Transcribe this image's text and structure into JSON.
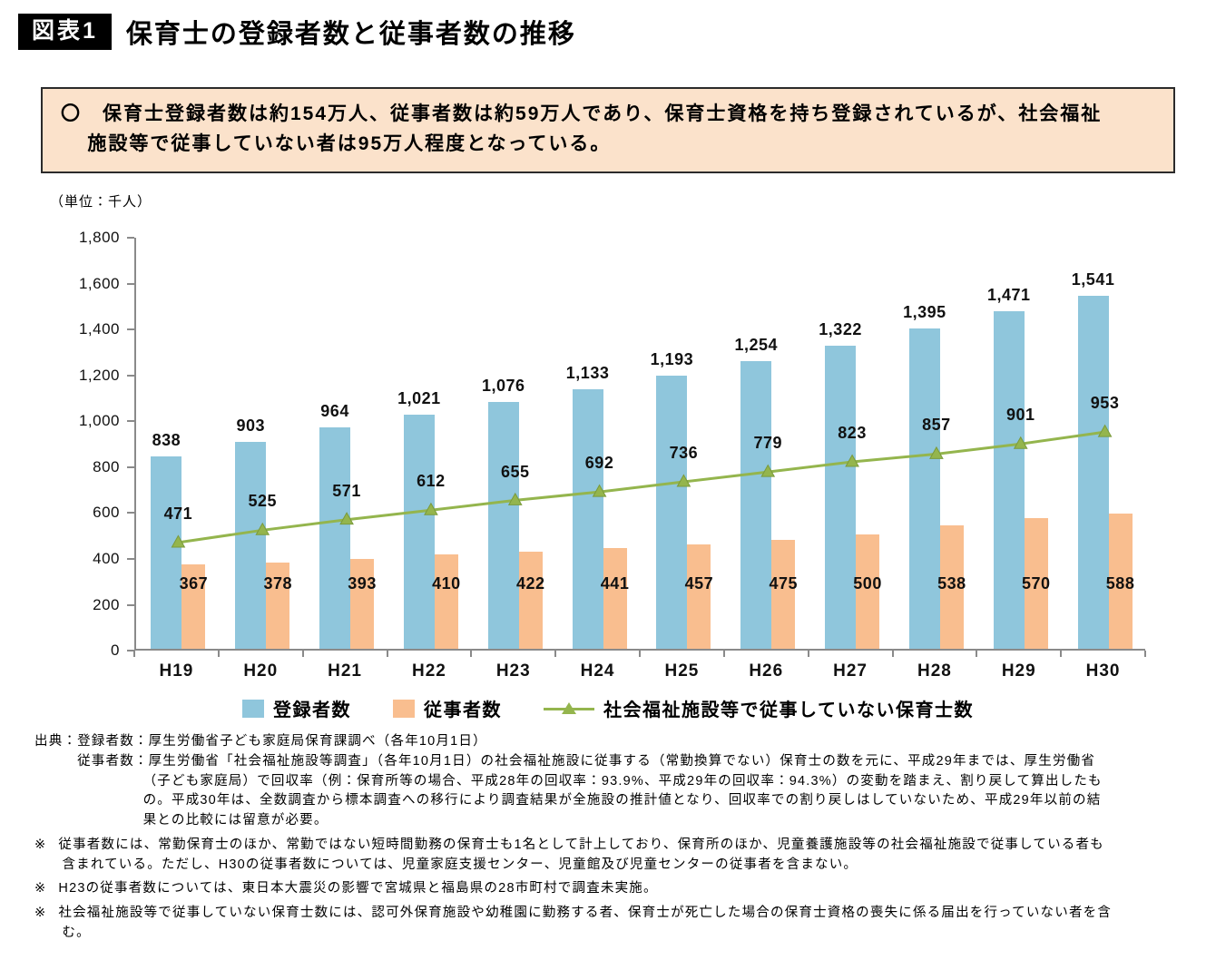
{
  "header": {
    "tag": "図表1",
    "title": "保育士の登録者数と従事者数の推移"
  },
  "callout": {
    "text": "〇　保育士登録者数は約154万人、従事者数は約59万人であり、保育士資格を持ち登録されているが、社会福祉施設等で従事していない者は95万人程度となっている。"
  },
  "chart_data": {
    "type": "bar",
    "subtype": "grouped-bar-with-line",
    "unit_label": "（単位：千人）",
    "categories": [
      "H19",
      "H20",
      "H21",
      "H22",
      "H23",
      "H24",
      "H25",
      "H26",
      "H27",
      "H28",
      "H29",
      "H30"
    ],
    "series": [
      {
        "name": "登録者数",
        "renderer": "bar",
        "color": "#8fc6dc",
        "values": [
          838,
          903,
          964,
          1021,
          1076,
          1133,
          1193,
          1254,
          1322,
          1395,
          1471,
          1541
        ]
      },
      {
        "name": "従事者数",
        "renderer": "bar",
        "color": "#f9be8f",
        "values": [
          367,
          378,
          393,
          410,
          422,
          441,
          457,
          475,
          500,
          538,
          570,
          588
        ]
      },
      {
        "name": "社会福祉施設等で従事していない保育士数",
        "renderer": "line",
        "color": "#94b54d",
        "marker": "triangle",
        "values": [
          471,
          525,
          571,
          612,
          655,
          692,
          736,
          779,
          823,
          857,
          901,
          953
        ]
      }
    ],
    "ylim": [
      0,
      1800
    ],
    "ytick_step": 200,
    "grid": false,
    "legend_position": "bottom",
    "value_labels": true
  },
  "notes": {
    "source_label": "出典：",
    "source_items": [
      "登録者数：厚生労働省子ども家庭局保育課調べ（各年10月1日）",
      "従事者数：厚生労働省「社会福祉施設等調査」（各年10月1日）の社会福祉施設に従事する（常勤換算でない）保育士の数を元に、平成29年までは、厚生労働省（子ども家庭局）で回収率（例：保育所等の場合、平成28年の回収率：93.9%、平成29年の回収率：94.3%）の変動を踏まえ、割り戻して算出したもの。平成30年は、全数調査から標本調査への移行により調査結果が全施設の推計値となり、回収率での割り戻しはしていないため、平成29年以前の結果との比較には留意が必要。"
    ],
    "remark_marker": "※",
    "remarks": [
      "従事者数には、常勤保育士のほか、常勤ではない短時間勤務の保育士も1名として計上しており、保育所のほか、児童養護施設等の社会福祉施設で従事している者も含まれている。ただし、H30の従事者数については、児童家庭支援センター、児童館及び児童センターの従事者を含まない。",
      "H23の従事者数については、東日本大震災の影響で宮城県と福島県の28市町村で調査未実施。",
      "社会福祉施設等で従事していない保育士数には、認可外保育施設や幼稚園に勤務する者、保育士が死亡した場合の保育士資格の喪失に係る届出を行っていない者を含む。"
    ]
  }
}
